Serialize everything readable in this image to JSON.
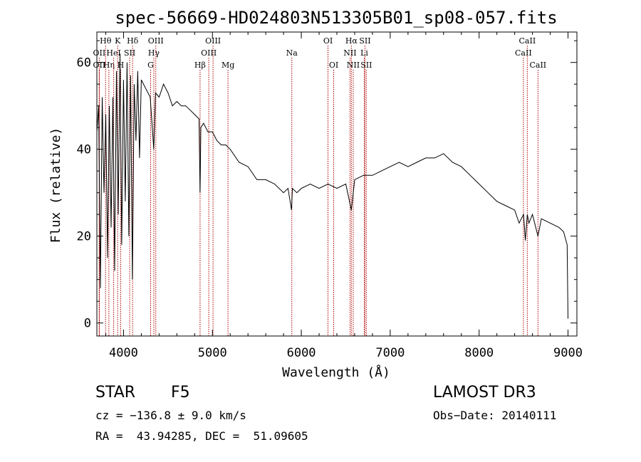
{
  "chart_data": {
    "type": "line",
    "title": "spec-56669-HD024803N513305B01_sp08-057.fits",
    "xlabel": "Wavelength (Å)",
    "ylabel": "Flux (relative)",
    "xlim": [
      3700,
      9100
    ],
    "ylim": [
      -3,
      67
    ],
    "xticks": [
      4000,
      5000,
      6000,
      7000,
      8000,
      9000
    ],
    "yticks": [
      0,
      20,
      40,
      60
    ],
    "series": [
      {
        "name": "spectrum",
        "x": [
          3700,
          3720,
          3740,
          3760,
          3780,
          3800,
          3820,
          3840,
          3860,
          3880,
          3900,
          3920,
          3940,
          3960,
          3980,
          4000,
          4020,
          4040,
          4060,
          4080,
          4100,
          4120,
          4140,
          4160,
          4180,
          4200,
          4250,
          4300,
          4340,
          4360,
          4400,
          4450,
          4500,
          4550,
          4600,
          4650,
          4700,
          4750,
          4800,
          4850,
          4861,
          4870,
          4900,
          4950,
          5000,
          5050,
          5100,
          5150,
          5200,
          5300,
          5400,
          5500,
          5600,
          5700,
          5800,
          5850,
          5890,
          5900,
          5950,
          6000,
          6100,
          6200,
          6300,
          6400,
          6500,
          6563,
          6600,
          6700,
          6800,
          6900,
          7000,
          7100,
          7200,
          7300,
          7400,
          7500,
          7600,
          7700,
          7800,
          7900,
          8000,
          8100,
          8200,
          8300,
          8400,
          8450,
          8500,
          8520,
          8542,
          8560,
          8600,
          8662,
          8700,
          8800,
          8900,
          8950,
          8990,
          9000
        ],
        "values": [
          44,
          50,
          8,
          52,
          30,
          48,
          15,
          50,
          22,
          52,
          12,
          58,
          25,
          62,
          18,
          56,
          28,
          60,
          20,
          57,
          10,
          55,
          42,
          58,
          38,
          56,
          54,
          52,
          40,
          53,
          52,
          55,
          53,
          50,
          51,
          50,
          50,
          49,
          48,
          47,
          30,
          45,
          46,
          44,
          44,
          42,
          41,
          41,
          40,
          37,
          36,
          33,
          33,
          32,
          30,
          31,
          26,
          31,
          30,
          31,
          32,
          31,
          32,
          31,
          32,
          26,
          33,
          34,
          34,
          35,
          36,
          37,
          36,
          37,
          38,
          38,
          39,
          37,
          36,
          34,
          32,
          30,
          28,
          27,
          26,
          23,
          25,
          19,
          25,
          23,
          25,
          20,
          24,
          23,
          22,
          21,
          18,
          1
        ]
      }
    ],
    "line_markers": [
      {
        "label": "Hθ",
        "x": 3798,
        "row": 1
      },
      {
        "label": "OII",
        "x": 3727,
        "row": 2
      },
      {
        "label": "OII",
        "x": 3727,
        "row": 3
      },
      {
        "label": "Hη",
        "x": 3835,
        "row": 3
      },
      {
        "label": "HeI",
        "x": 3889,
        "row": 2
      },
      {
        "label": "K",
        "x": 3934,
        "row": 1
      },
      {
        "label": "SII",
        "x": 4069,
        "row": 2
      },
      {
        "label": "H",
        "x": 3968,
        "row": 3
      },
      {
        "label": "Hδ",
        "x": 4102,
        "row": 1
      },
      {
        "label": "OIII",
        "x": 4363,
        "row": 1
      },
      {
        "label": "Hγ",
        "x": 4341,
        "row": 2
      },
      {
        "label": "G",
        "x": 4305,
        "row": 3
      },
      {
        "label": "Hβ",
        "x": 4861,
        "row": 3
      },
      {
        "label": "OIII",
        "x": 5007,
        "row": 1
      },
      {
        "label": "OIII",
        "x": 4959,
        "row": 2
      },
      {
        "label": "Mg",
        "x": 5175,
        "row": 3
      },
      {
        "label": "Na",
        "x": 5893,
        "row": 2
      },
      {
        "label": "OI",
        "x": 6300,
        "row": 1
      },
      {
        "label": "OI",
        "x": 6364,
        "row": 3
      },
      {
        "label": "Hα",
        "x": 6563,
        "row": 1
      },
      {
        "label": "SII",
        "x": 6716,
        "row": 1
      },
      {
        "label": "NII",
        "x": 6548,
        "row": 2
      },
      {
        "label": "Li",
        "x": 6708,
        "row": 2
      },
      {
        "label": "NII",
        "x": 6584,
        "row": 3
      },
      {
        "label": "SII",
        "x": 6731,
        "row": 3
      },
      {
        "label": "CaII",
        "x": 8542,
        "row": 1
      },
      {
        "label": "CaII",
        "x": 8498,
        "row": 2
      },
      {
        "label": "CaII",
        "x": 8662,
        "row": 3
      }
    ],
    "marker_color": "#b00000"
  },
  "info": {
    "object_class": "STAR",
    "subclass": "F5",
    "survey": "LAMOST DR3",
    "cz": "cz = −136.8 ± 9.0 km/s",
    "obs_date": "Obs−Date: 20140111",
    "coords": "RA =  43.94285, DEC =  51.09605"
  }
}
